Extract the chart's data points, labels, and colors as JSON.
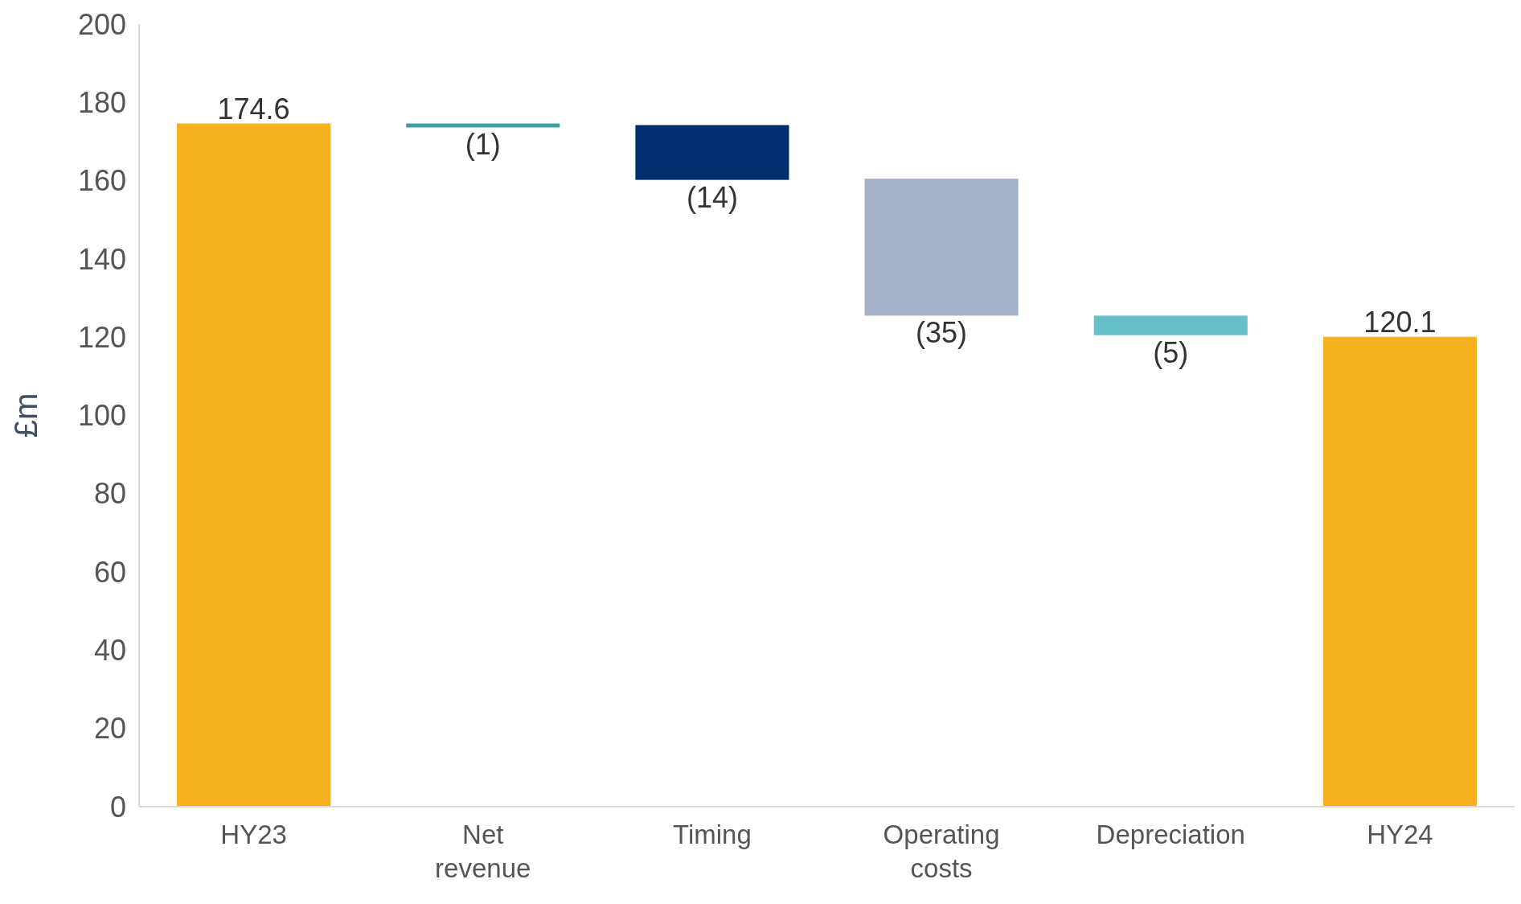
{
  "chart_data": {
    "type": "bar",
    "ylabel": "£m",
    "categories": [
      "HY23",
      "Net revenue",
      "Timing",
      "Operating costs",
      "Depreciation",
      "HY24"
    ],
    "values": [
      174.6,
      -1,
      -14,
      -35,
      -5,
      120.1
    ],
    "base": [
      0,
      174.6,
      174.2,
      160.5,
      125.5,
      0
    ],
    "colors": [
      "#f5b21c",
      "#3a9ea5",
      "#002d6e",
      "#a3b2c8",
      "#68c1c9",
      "#f5b21c"
    ],
    "value_labels": [
      "174.6",
      "(1)",
      "(14)",
      "(35)",
      "(5)",
      "120.1"
    ],
    "ylim": [
      0,
      200
    ],
    "yticks": [
      0,
      20,
      40,
      60,
      80,
      100,
      120,
      140,
      160,
      180,
      200
    ],
    "grid": false
  }
}
